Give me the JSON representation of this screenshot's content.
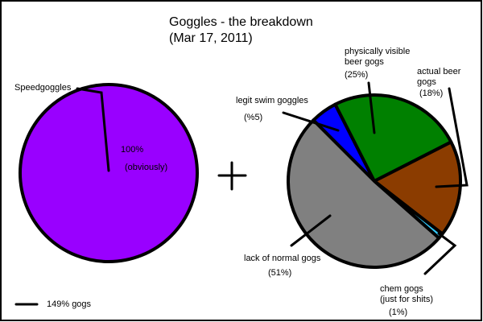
{
  "header": {
    "title": "Goggles - the breakdown",
    "subtitle": "(Mar 17, 2011)"
  },
  "chart_data": [
    {
      "type": "pie",
      "categories": [
        "Speedgoggles"
      ],
      "values": [
        100
      ],
      "value_labels": [
        "100%"
      ],
      "annotation": "(obviously)",
      "colors": [
        "#9900ff"
      ]
    },
    {
      "type": "pie",
      "categories": [
        "legit swim goggles",
        "physically visible\nbeer gogs",
        "actual beer\ngogs",
        "chem gogs\n(just for shits)",
        "lack of normal gogs"
      ],
      "values": [
        5,
        25,
        18,
        1,
        51
      ],
      "value_labels": [
        "(%5)",
        "(25%)",
        "(18%)",
        "(1%)",
        "(51%)"
      ],
      "colors": [
        "#0000ff",
        "#008000",
        "#8b3c00",
        "#33ccff",
        "#808080"
      ]
    }
  ],
  "legend": {
    "label": "149% gogs"
  }
}
